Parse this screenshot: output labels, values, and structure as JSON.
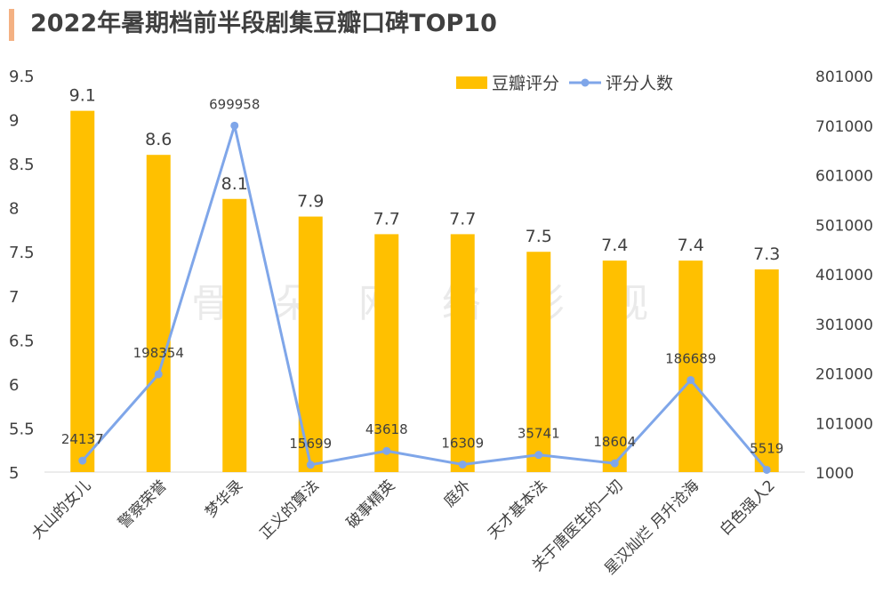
{
  "header": {
    "title": "2022年暑期档前半段剧集豆瓣口碑TOP10"
  },
  "watermark": "骨朵网络影视",
  "colors": {
    "bar": "#FFC000",
    "line": "#7FA6E9",
    "title_accent": "#F4B183"
  },
  "chart_data": {
    "type": "bar",
    "title": "2022年暑期档前半段剧集豆瓣口碑TOP10",
    "categories": [
      "大山的女儿",
      "警察荣誉",
      "梦华录",
      "正义的算法",
      "破事精英",
      "庭外",
      "天才基本法",
      "关于唐医生的一切",
      "星汉灿烂 月升沧海",
      "白色强人2"
    ],
    "series": [
      {
        "name": "豆瓣评分",
        "type": "bar",
        "axis": "left",
        "values": [
          9.1,
          8.6,
          8.1,
          7.9,
          7.7,
          7.7,
          7.5,
          7.4,
          7.4,
          7.3
        ]
      },
      {
        "name": "评分人数",
        "type": "line",
        "axis": "right",
        "values": [
          24137,
          198354,
          699958,
          15699,
          43618,
          16309,
          35741,
          18604,
          186689,
          5519
        ]
      }
    ],
    "y_left": {
      "min": 5,
      "max": 9.5,
      "ticks": [
        "5",
        "5.5",
        "6",
        "6.5",
        "7",
        "7.5",
        "8",
        "8.5",
        "9",
        "9.5"
      ]
    },
    "y_right": {
      "min": 1000,
      "max": 801000,
      "ticks": [
        "1000",
        "101000",
        "201000",
        "301000",
        "401000",
        "501000",
        "601000",
        "701000",
        "801000"
      ]
    },
    "legend": {
      "position": "top-right",
      "items": [
        "豆瓣评分",
        "评分人数"
      ]
    },
    "grid": false
  }
}
